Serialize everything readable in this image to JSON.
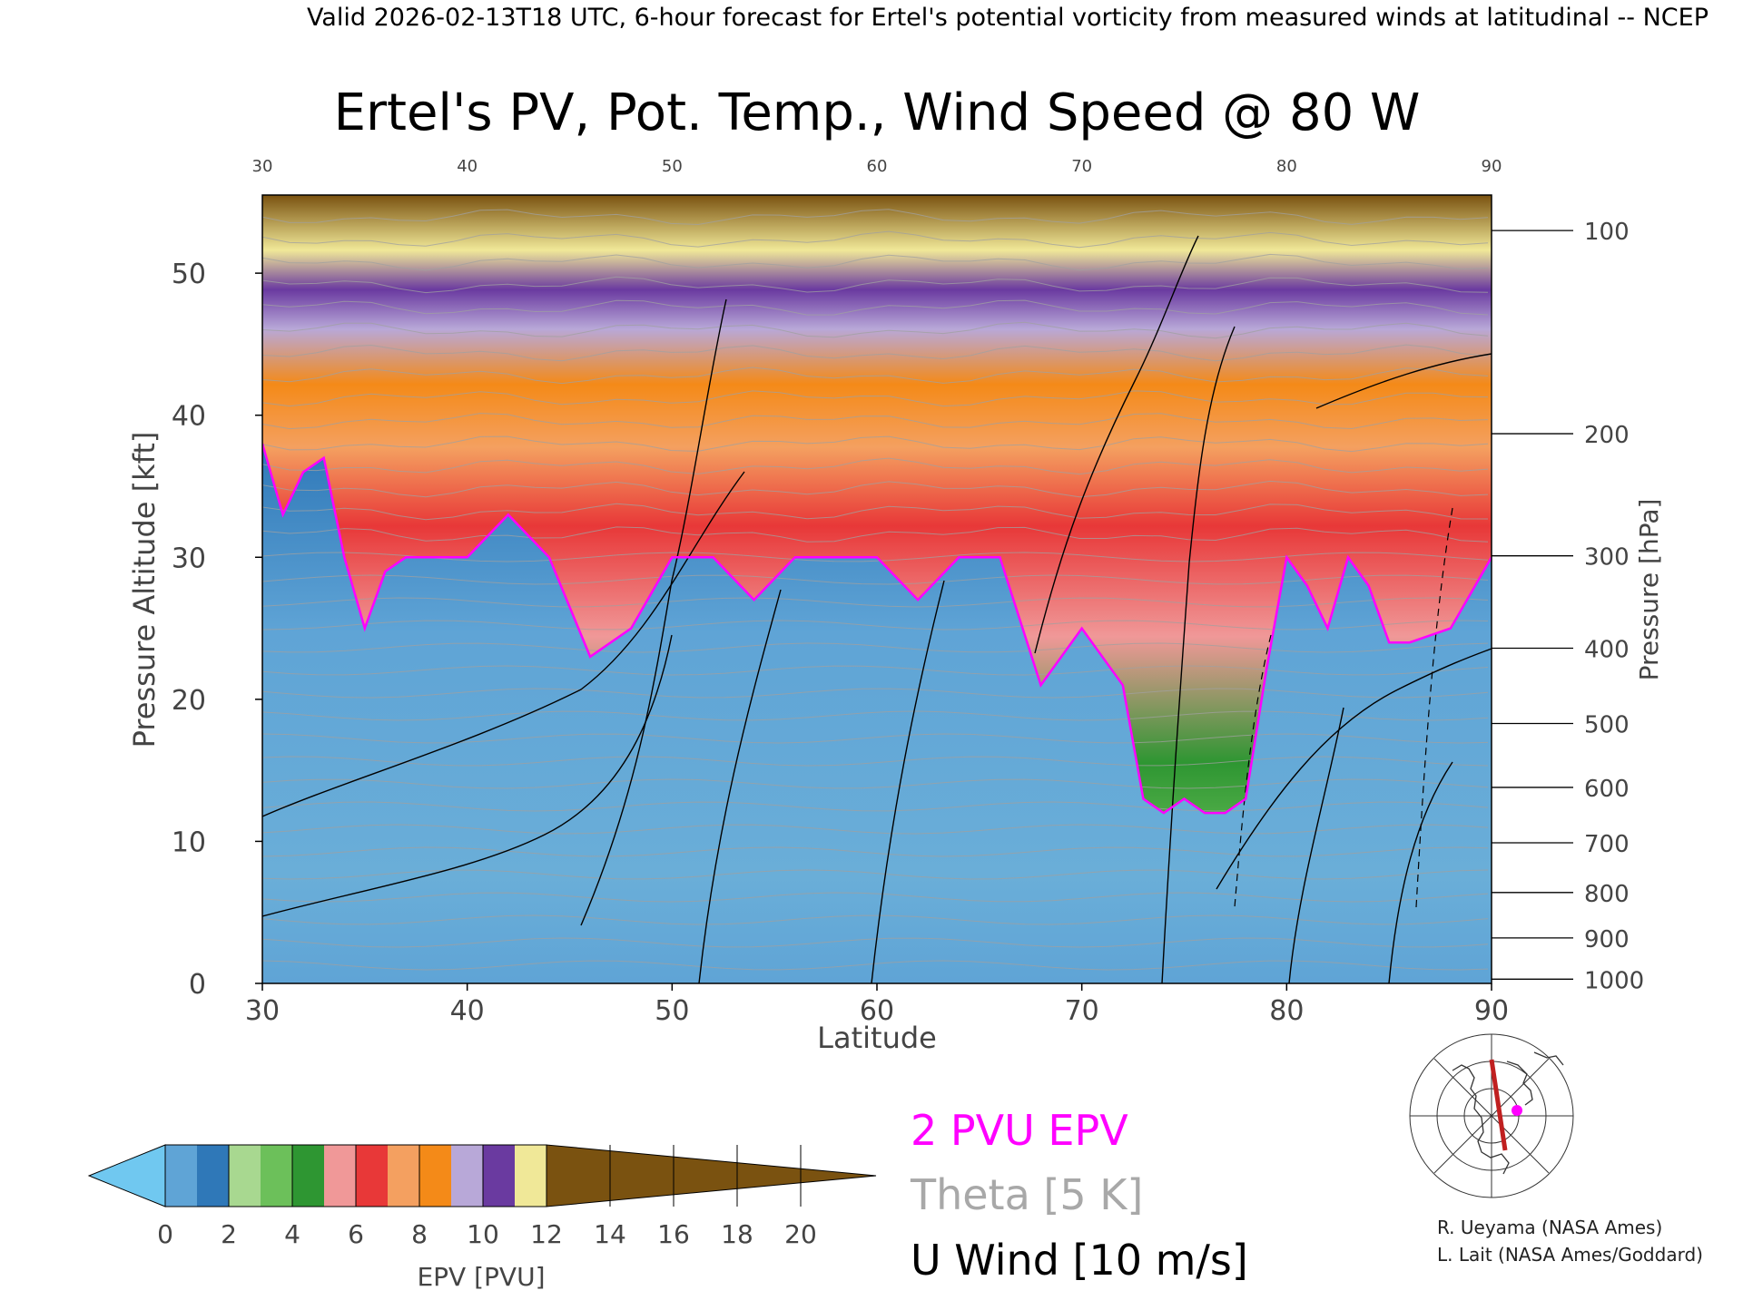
{
  "header": {
    "valid_line": "Valid 2026-02-13T18 UTC, 6-hour forecast for Ertel's potential vorticity from measured winds at latitudinal -- NCEP"
  },
  "chart_data": {
    "type": "heatmap",
    "title": "Ertel's PV, Pot. Temp., Wind Speed @ 80 W",
    "xlabel": "Latitude",
    "ylabel_left": "Pressure Altitude [kft]",
    "ylabel_right": "Pressure [hPa]",
    "xlim": [
      30,
      90
    ],
    "ylim_kft": [
      0,
      55.5
    ],
    "x_ticks_bottom": [
      "30",
      "40",
      "50",
      "60",
      "70",
      "80",
      "90"
    ],
    "x_ticks_top": [
      "30",
      "40",
      "50",
      "60",
      "70",
      "80",
      "90"
    ],
    "y_ticks_left": [
      "0",
      "10",
      "20",
      "30",
      "40",
      "50"
    ],
    "pressure_ticks": [
      {
        "label": "100",
        "kft": 53.0
      },
      {
        "label": "200",
        "kft": 38.7
      },
      {
        "label": "300",
        "kft": 30.1
      },
      {
        "label": "400",
        "kft": 23.6
      },
      {
        "label": "500",
        "kft": 18.3
      },
      {
        "label": "600",
        "kft": 13.8
      },
      {
        "label": "700",
        "kft": 9.9
      },
      {
        "label": "800",
        "kft": 6.4
      },
      {
        "label": "900",
        "kft": 3.2
      },
      {
        "label": "1000",
        "kft": 0.3
      }
    ],
    "pvu_2_altitude_kft": {
      "lat": [
        30,
        31,
        32,
        33,
        34,
        35,
        36,
        37,
        38,
        40,
        42,
        44,
        46,
        48,
        50,
        52,
        54,
        56,
        58,
        60,
        62,
        64,
        66,
        68,
        70,
        72,
        73,
        74,
        75,
        76,
        77,
        78,
        79,
        80,
        81,
        82,
        83,
        84,
        85,
        86,
        88,
        90
      ],
      "kft": [
        38,
        33,
        36,
        37,
        30,
        25,
        29,
        30,
        30,
        30,
        33,
        30,
        23,
        25,
        30,
        30,
        27,
        30,
        30,
        30,
        27,
        30,
        30,
        21,
        25,
        21,
        13,
        12,
        13,
        12,
        12,
        13,
        22,
        30,
        28,
        25,
        30,
        28,
        24,
        24,
        25,
        30
      ]
    },
    "colorbar": {
      "label": "EPV [PVU]",
      "ticks": [
        "0",
        "2",
        "4",
        "6",
        "8",
        "10",
        "12",
        "14",
        "16",
        "18",
        "20"
      ],
      "colors": [
        "#70c8f0",
        "#5fa4d6",
        "#2f78b8",
        "#a8d890",
        "#6cc05a",
        "#2e9632",
        "#f09898",
        "#e83838",
        "#f4a060",
        "#f48a18",
        "#b8a8d8",
        "#6a3aa0",
        "#f0e898",
        "#7a5210"
      ]
    },
    "legend": {
      "pvu": "2 PVU EPV",
      "theta": "Theta [5 K]",
      "uwind": "U Wind [10 m/s]"
    }
  },
  "credits": {
    "line1": "R. Ueyama (NASA Ames)",
    "line2": "L. Lait (NASA Ames/Goddard)"
  },
  "colors": {
    "pvu_contour": "#ff00ff",
    "theta_contour": "#a0a0a0",
    "wind_contour": "#000000",
    "section_line": "#c02020"
  }
}
